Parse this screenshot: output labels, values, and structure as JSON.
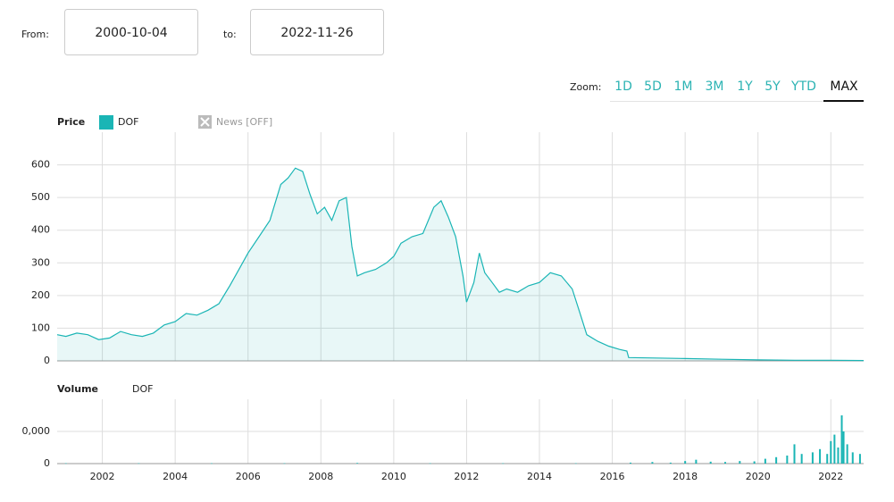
{
  "controls": {
    "from_label": "From:",
    "from_date": "2000-10-04",
    "to_label": "to:",
    "to_date": "2022-11-26",
    "zoom_label": "Zoom:",
    "zoom_options": [
      "1D",
      "5D",
      "1M",
      "3M",
      "1Y",
      "5Y",
      "YTD",
      "MAX"
    ],
    "zoom_active": "MAX"
  },
  "chart_data": [
    {
      "type": "line",
      "title": "Price",
      "news_label": "News [OFF]",
      "area": true,
      "grid": true,
      "x": [
        2000.76,
        2001.0,
        2001.3,
        2001.6,
        2001.9,
        2002.2,
        2002.5,
        2002.8,
        2003.1,
        2003.4,
        2003.7,
        2004.0,
        2004.3,
        2004.6,
        2004.9,
        2005.2,
        2005.5,
        2005.8,
        2006.0,
        2006.3,
        2006.6,
        2006.9,
        2007.1,
        2007.3,
        2007.5,
        2007.7,
        2007.9,
        2008.1,
        2008.3,
        2008.5,
        2008.7,
        2008.85,
        2009.0,
        2009.2,
        2009.5,
        2009.8,
        2010.0,
        2010.2,
        2010.5,
        2010.8,
        2011.1,
        2011.3,
        2011.5,
        2011.7,
        2011.9,
        2012.0,
        2012.2,
        2012.35,
        2012.5,
        2012.7,
        2012.9,
        2013.1,
        2013.4,
        2013.7,
        2014.0,
        2014.3,
        2014.6,
        2014.9,
        2015.1,
        2015.3,
        2015.6,
        2015.9,
        2016.2,
        2016.4,
        2016.45,
        2017.0,
        2018.0,
        2019.0,
        2020.0,
        2021.0,
        2022.0,
        2022.9
      ],
      "series": [
        {
          "name": "DOF",
          "color": "#1ab5b5",
          "values": [
            80,
            75,
            85,
            80,
            65,
            70,
            90,
            80,
            75,
            85,
            110,
            120,
            145,
            140,
            155,
            175,
            230,
            290,
            330,
            380,
            430,
            540,
            560,
            590,
            580,
            510,
            450,
            470,
            430,
            490,
            500,
            350,
            260,
            270,
            280,
            300,
            320,
            360,
            380,
            390,
            470,
            490,
            440,
            380,
            260,
            180,
            240,
            330,
            270,
            240,
            210,
            220,
            210,
            230,
            240,
            270,
            260,
            220,
            150,
            80,
            60,
            45,
            35,
            30,
            10,
            9,
            7,
            5,
            3,
            2,
            2,
            1
          ]
        }
      ],
      "xlim": [
        2000.76,
        2022.9
      ],
      "ylim": [
        0,
        700
      ],
      "yticks": [
        0,
        100,
        200,
        300,
        400,
        500,
        600
      ]
    },
    {
      "type": "bar",
      "title": "Volume",
      "grid": true,
      "x": [
        2001,
        2003,
        2005,
        2007,
        2009,
        2011,
        2013,
        2015,
        2016.5,
        2017.1,
        2017.6,
        2018.0,
        2018.3,
        2018.7,
        2019.1,
        2019.5,
        2019.9,
        2020.2,
        2020.5,
        2020.8,
        2021.0,
        2021.2,
        2021.5,
        2021.7,
        2021.9,
        2022.0,
        2022.1,
        2022.2,
        2022.3,
        2022.35,
        2022.45,
        2022.6,
        2022.8
      ],
      "series": [
        {
          "name": "DOF",
          "color": "#1ab5b5",
          "values": [
            0.01,
            0.01,
            0.01,
            0.01,
            0.02,
            0.01,
            0.01,
            0.01,
            0.03,
            0.05,
            0.03,
            0.08,
            0.12,
            0.06,
            0.05,
            0.08,
            0.07,
            0.15,
            0.2,
            0.25,
            0.6,
            0.3,
            0.35,
            0.45,
            0.3,
            0.7,
            0.9,
            0.5,
            1.5,
            1.0,
            0.6,
            0.35,
            0.3
          ]
        }
      ],
      "xlim": [
        2000.76,
        2022.9
      ],
      "xticks": [
        2002,
        2004,
        2006,
        2008,
        2010,
        2012,
        2014,
        2016,
        2018,
        2020,
        2022
      ],
      "ylim": [
        0,
        2
      ],
      "yticks": [
        0,
        {
          "value": 1,
          "label": "0,000"
        }
      ]
    }
  ]
}
